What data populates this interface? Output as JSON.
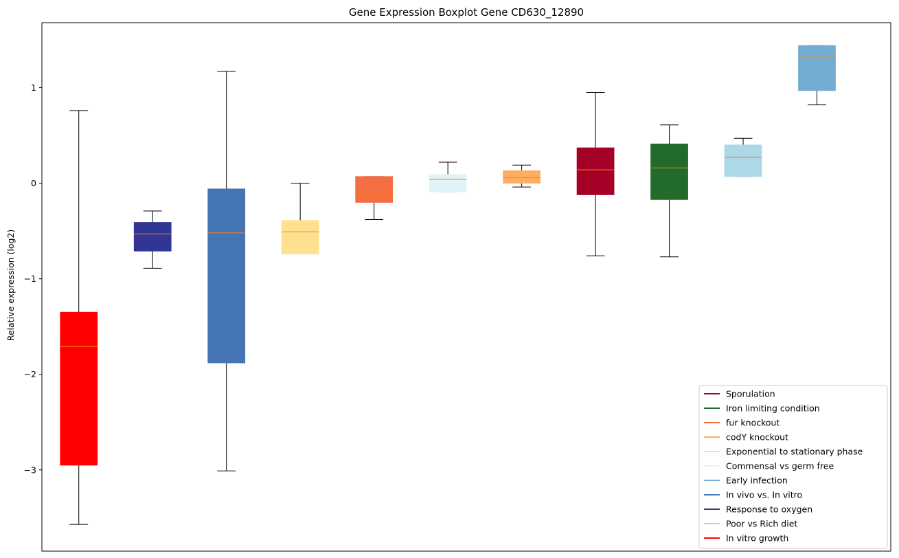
{
  "chart_data": {
    "type": "boxplot",
    "title": "Gene Expression Boxplot Gene CD630_12890",
    "xlabel": "",
    "ylabel": "Relative expression (log2)",
    "ylim": [
      -3.85,
      1.68
    ],
    "yticks": [
      1,
      0,
      -1,
      -2,
      -3
    ],
    "ytick_labels": [
      "1",
      "0",
      "−1",
      "−2",
      "−3"
    ],
    "median_color": "#ff7f0e",
    "boxes": [
      {
        "name": "In vitro growth",
        "color": "#ff0000",
        "whisker_low": -3.57,
        "q1": -2.95,
        "median": -1.71,
        "q3": -1.35,
        "whisker_high": 0.76
      },
      {
        "name": "Response to oxygen",
        "color": "#313695",
        "whisker_low": -0.89,
        "q1": -0.71,
        "median": -0.53,
        "q3": -0.41,
        "whisker_high": -0.29
      },
      {
        "name": "In vivo vs. In vitro",
        "color": "#4575b4",
        "whisker_low": -3.01,
        "q1": -1.88,
        "median": -0.52,
        "q3": -0.06,
        "whisker_high": 1.17
      },
      {
        "name": "Exponential to stationary phase",
        "color": "#fee090",
        "whisker_low": -0.74,
        "q1": -0.74,
        "median": -0.51,
        "q3": -0.39,
        "whisker_high": 0.0
      },
      {
        "name": "fur knockout",
        "color": "#f46d43",
        "whisker_low": -0.38,
        "q1": -0.2,
        "median": -0.12,
        "q3": 0.07,
        "whisker_high": 0.07
      },
      {
        "name": "Commensal vs germ free",
        "color": "#e0f3f8",
        "whisker_low": -0.09,
        "q1": -0.09,
        "median": 0.04,
        "q3": 0.09,
        "whisker_high": 0.22
      },
      {
        "name": "codY knockout",
        "color": "#fdae61",
        "whisker_low": -0.04,
        "q1": 0.0,
        "median": 0.06,
        "q3": 0.13,
        "whisker_high": 0.19
      },
      {
        "name": "Sporulation",
        "color": "#a50026",
        "whisker_low": -0.76,
        "q1": -0.12,
        "median": 0.14,
        "q3": 0.37,
        "whisker_high": 0.95
      },
      {
        "name": "Iron limiting condition",
        "color": "#226b2a",
        "whisker_low": -0.77,
        "q1": -0.17,
        "median": 0.16,
        "q3": 0.41,
        "whisker_high": 0.61
      },
      {
        "name": "Poor vs Rich diet",
        "color": "#add8e6",
        "whisker_low": 0.07,
        "q1": 0.07,
        "median": 0.27,
        "q3": 0.4,
        "whisker_high": 0.47
      },
      {
        "name": "Early infection",
        "color": "#74add1",
        "whisker_low": 0.82,
        "q1": 0.97,
        "median": 1.33,
        "q3": 1.44,
        "whisker_high": 1.44
      }
    ],
    "legend": {
      "position": "lower-right",
      "entries": [
        {
          "label": "Sporulation",
          "color": "#a50026"
        },
        {
          "label": "Iron limiting condition",
          "color": "#226b2a"
        },
        {
          "label": "fur knockout",
          "color": "#f46d43"
        },
        {
          "label": "codY knockout",
          "color": "#fdae61"
        },
        {
          "label": "Exponential to stationary phase",
          "color": "#fee090"
        },
        {
          "label": "Commensal vs germ free",
          "color": "#e0f3f8"
        },
        {
          "label": "Early infection",
          "color": "#74add1"
        },
        {
          "label": "In vivo vs. In vitro",
          "color": "#4575b4"
        },
        {
          "label": "Response to oxygen",
          "color": "#313695"
        },
        {
          "label": "Poor vs Rich diet",
          "color": "#add8e6"
        },
        {
          "label": "In vitro growth",
          "color": "#ff0000"
        }
      ]
    }
  }
}
